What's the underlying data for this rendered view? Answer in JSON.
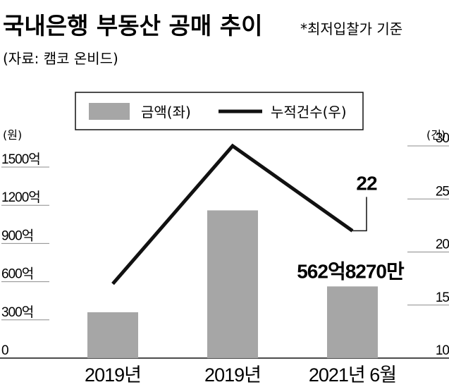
{
  "header": {
    "title": "국내은행 부동산 공매 추이",
    "note": "*최저입찰가 기준",
    "source": "(자료: 캠코 온비드)"
  },
  "legend": {
    "bar_label": "금액(좌)",
    "line_label": "누적건수(우)"
  },
  "colors": {
    "bar": "#a6a6a6",
    "line": "#111111",
    "grid": "#8c8c8c"
  },
  "chart_data": {
    "type": "bar",
    "categories": [
      "2019년",
      "2019년",
      "2021년 6월"
    ],
    "series": [
      {
        "name": "금액(좌)",
        "type": "bar",
        "axis": "left",
        "values": [
          360,
          1160,
          562.827
        ]
      },
      {
        "name": "누적건수(우)",
        "type": "line",
        "axis": "right",
        "values": [
          17,
          30,
          22
        ]
      }
    ],
    "left_axis": {
      "unit": "(원)",
      "ticks": [
        0,
        300,
        600,
        900,
        1200,
        1500
      ],
      "tick_labels": [
        "0",
        "300억",
        "600억",
        "900억",
        "1200억",
        "1500억"
      ],
      "ylim": [
        0,
        1850
      ]
    },
    "right_axis": {
      "unit": "(건)",
      "ticks": [
        10,
        15,
        20,
        25,
        30
      ],
      "tick_labels": [
        "10",
        "15",
        "20",
        "25",
        "30"
      ],
      "ylim": [
        10,
        30
      ]
    },
    "annotations": {
      "line_last": "22",
      "bar_last": "562억8270만"
    },
    "legend_position": "top-center",
    "grid": true
  }
}
